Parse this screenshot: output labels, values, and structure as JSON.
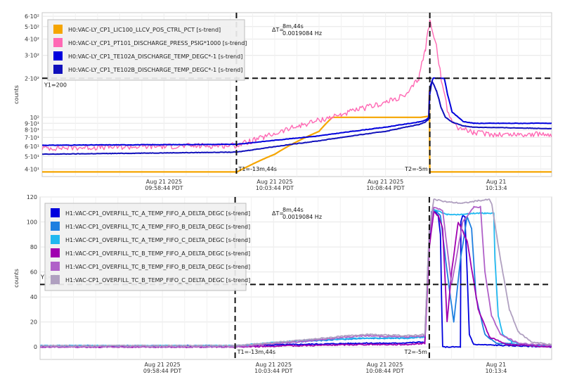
{
  "chart_data": [
    {
      "type": "line",
      "yscale": "log",
      "ylabel": "counts",
      "ylim": [
        35,
        640
      ],
      "yticks": [
        {
          "v": 40,
          "label": "4·10¹"
        },
        {
          "v": 50,
          "label": "5·10¹"
        },
        {
          "v": 60,
          "label": "6·10¹"
        },
        {
          "v": 70,
          "label": "7·10¹"
        },
        {
          "v": 80,
          "label": "8·10¹"
        },
        {
          "v": 90,
          "label": "9·10¹"
        },
        {
          "v": 100,
          "label": "10²"
        },
        {
          "v": 200,
          "label": "2·10²"
        },
        {
          "v": 300,
          "label": "3·10²"
        },
        {
          "v": 400,
          "label": "4·10²"
        },
        {
          "v": 500,
          "label": "5·10²"
        },
        {
          "v": 600,
          "label": "6·10²"
        }
      ],
      "xlim": [
        -22.5,
        0.5
      ],
      "xticks": [
        {
          "v": -17,
          "label1": "Aug 21 2025",
          "label2": "09:58:44 PDT"
        },
        {
          "v": -12,
          "label1": "Aug 21 2025",
          "label2": "10:03:44 PDT"
        },
        {
          "v": -7,
          "label1": "Aug 21 2025",
          "label2": "10:08:44 PDT"
        },
        {
          "v": -2,
          "label1": "Aug 21",
          "label2": "10:13:4"
        }
      ],
      "cursors": {
        "t1": -13.73,
        "t2": -5,
        "y1": 200,
        "t1_label": "T1=-13m,44s",
        "t2_label": "T2=-5m",
        "y1_label": "Y1=200"
      },
      "delta": {
        "label": "ΔT=",
        "value": "8m,44s",
        "freq": "0.0019084 Hz"
      },
      "legend": [
        {
          "label": "H0:VAC-LY_CP1_LIC100_LLCV_POS_CTRL_PCT [s-trend]",
          "color": "#f5a500"
        },
        {
          "label": "H0:VAC-LY_CP1_PT101_DISCHARGE_PRESS_PSIG*1000 [s-trend]",
          "color": "#ff69b4"
        },
        {
          "label": "H0:VAC-LY_CP1_TE102A_DISCHARGE_TEMP_DEGC*-1 [s-trend]",
          "color": "#0000dd"
        },
        {
          "label": "H0:VAC-LY_CP1_TE102B_DISCHARGE_TEMP_DEGC*-1 [s-trend]",
          "color": "#1010bb"
        }
      ],
      "series": [
        {
          "name": "H0:VAC-LY_CP1_LIC100_LLCV_POS_CTRL_PCT [s-trend]",
          "color": "#f5a500",
          "width": 2.2,
          "noise": 0,
          "x": [
            -22.5,
            -13.7,
            -13.2,
            -12.0,
            -10.0,
            -9.4,
            -5.4,
            -5.05,
            -5.02,
            -5.0,
            0.5
          ],
          "y": [
            38,
            38,
            42,
            52,
            78,
            100,
            100,
            102,
            160,
            38,
            38
          ]
        },
        {
          "name": "H0:VAC-LY_CP1_PT101_DISCHARGE_PRESS_PSIG*1000 [s-trend]",
          "color": "#ff69b4",
          "width": 1.4,
          "noise": 0.05,
          "x": [
            -22.5,
            -13.7,
            -12.5,
            -11.0,
            -9.0,
            -7.0,
            -6.0,
            -5.5,
            -5.2,
            -5.0,
            -4.8,
            -4.5,
            -4.2,
            -3.8,
            -3.0,
            -2.0,
            -1.0,
            0.5
          ],
          "y": [
            58,
            61,
            70,
            85,
            105,
            130,
            150,
            200,
            330,
            550,
            420,
            200,
            110,
            85,
            76,
            74,
            74,
            74
          ]
        },
        {
          "name": "H0:VAC-LY_CP1_TE102A_DISCHARGE_TEMP_DEGC*-1 [s-trend]",
          "color": "#0000dd",
          "width": 2.0,
          "noise": 0.004,
          "x": [
            -22.5,
            -13.7,
            -10.0,
            -7.0,
            -5.5,
            -5.2,
            -5.05,
            -5.0,
            -4.85,
            -4.5,
            -4.35,
            -4.2,
            -4.0,
            -3.5,
            -3.0,
            0.5
          ],
          "y": [
            61,
            62,
            72,
            84,
            92,
            95,
            100,
            170,
            200,
            200,
            200,
            150,
            110,
            93,
            90,
            90
          ]
        },
        {
          "name": "H0:VAC-LY_CP1_TE102B_DISCHARGE_TEMP_DEGC*-1 [s-trend]",
          "color": "#1010bb",
          "width": 2.0,
          "noise": 0.004,
          "x": [
            -22.5,
            -13.7,
            -10.0,
            -7.0,
            -5.5,
            -5.2,
            -5.05,
            -5.0,
            -4.9,
            -4.7,
            -4.5,
            -4.3,
            -4.0,
            -3.5,
            -3.0,
            0.5
          ],
          "y": [
            52,
            54,
            66,
            78,
            88,
            92,
            97,
            150,
            190,
            160,
            120,
            100,
            92,
            86,
            84,
            82
          ]
        }
      ]
    },
    {
      "type": "line",
      "yscale": "linear",
      "ylabel": "counts",
      "ylim": [
        -10,
        120
      ],
      "yticks": [
        {
          "v": 0,
          "label": "0"
        },
        {
          "v": 20,
          "label": "20"
        },
        {
          "v": 40,
          "label": "40"
        },
        {
          "v": 60,
          "label": "60"
        },
        {
          "v": 80,
          "label": "80"
        },
        {
          "v": 100,
          "label": "100"
        },
        {
          "v": 120,
          "label": "120"
        }
      ],
      "xlim": [
        -22.5,
        0.5
      ],
      "xticks": [
        {
          "v": -17,
          "label1": "Aug 21 2025",
          "label2": "09:58:44 PDT"
        },
        {
          "v": -12,
          "label1": "Aug 21 2025",
          "label2": "10:03:44 PDT"
        },
        {
          "v": -7,
          "label1": "Aug 21 2025",
          "label2": "10:08:44 PDT"
        },
        {
          "v": -2,
          "label1": "Aug 21",
          "label2": "10:13:4"
        }
      ],
      "cursors": {
        "t1": -13.73,
        "t2": -5,
        "y1": 50,
        "t1_label": "T1=-13m,44s",
        "t2_label": "T2=-5m",
        "y1_label": "Y1=50"
      },
      "delta": {
        "label": "ΔT=",
        "value": "8m,44s",
        "freq": "0.0019084 Hz"
      },
      "legend": [
        {
          "label": "H1:VAC-CP1_OVERFILL_TC_A_TEMP_FIFO_A_DELTA_DEGC [s-trend]",
          "color": "#0000dd"
        },
        {
          "label": "H1:VAC-CP1_OVERFILL_TC_A_TEMP_FIFO_B_DELTA_DEGC [s-trend]",
          "color": "#1e7fe0"
        },
        {
          "label": "H1:VAC-CP1_OVERFILL_TC_A_TEMP_FIFO_C_DELTA_DEGC [s-trend]",
          "color": "#20b8f0"
        },
        {
          "label": "H1:VAC-CP1_OVERFILL_TC_B_TEMP_FIFO_A_DELTA_DEGC [s-trend]",
          "color": "#a000b0"
        },
        {
          "label": "H1:VAC-CP1_OVERFILL_TC_B_TEMP_FIFO_B_DELTA_DEGC [s-trend]",
          "color": "#b060c8"
        },
        {
          "label": "H1:VAC-CP1_OVERFILL_TC_B_TEMP_FIFO_C_DELTA_DEGC [s-trend]",
          "color": "#b0a0c0"
        }
      ],
      "series": [
        {
          "name": "H1:VAC-CP1_OVERFILL_TC_A_TEMP_FIFO_A_DELTA_DEGC [s-trend]",
          "color": "#0000dd",
          "width": 1.8,
          "noise": 0.4,
          "x": [
            -22.5,
            -13.7,
            -11.0,
            -8.0,
            -6.5,
            -5.2,
            -5.0,
            -4.9,
            -4.8,
            -4.6,
            -4.5,
            -4.45,
            -4.4,
            -3.6,
            -3.58,
            -3.5,
            -3.4,
            -3.3,
            -3.2,
            -3.0,
            0.5
          ],
          "y": [
            1,
            1,
            2,
            3,
            3,
            4,
            85,
            108,
            110,
            105,
            90,
            40,
            0,
            0,
            100,
            105,
            104,
            60,
            10,
            2,
            0
          ]
        },
        {
          "name": "H1:VAC-CP1_OVERFILL_TC_A_TEMP_FIFO_B_DELTA_DEGC [s-trend]",
          "color": "#1e7fe0",
          "width": 1.8,
          "noise": 0.4,
          "x": [
            -22.5,
            -13.7,
            -11.0,
            -8.0,
            -6.0,
            -5.2,
            -5.0,
            -4.8,
            -4.5,
            -4.2,
            -3.9,
            -3.6,
            -3.3,
            -3.1,
            -2.9,
            -2.5,
            -2.0,
            0.5
          ],
          "y": [
            1,
            1,
            4,
            7,
            7,
            8,
            90,
            110,
            105,
            60,
            20,
            70,
            104,
            95,
            40,
            10,
            3,
            1
          ]
        },
        {
          "name": "H1:VAC-CP1_OVERFILL_TC_A_TEMP_FIFO_C_DELTA_DEGC [s-trend]",
          "color": "#20b8f0",
          "width": 1.8,
          "noise": 0.4,
          "x": [
            -22.5,
            -13.7,
            -11.0,
            -8.0,
            -6.0,
            -5.2,
            -5.0,
            -4.8,
            -4.5,
            -4.2,
            -3.5,
            -3.0,
            -2.5,
            -2.1,
            -2.05,
            -1.9,
            -1.7,
            -1.3,
            -0.5,
            0.5
          ],
          "y": [
            1,
            1,
            5,
            7,
            7,
            8,
            92,
            110,
            108,
            106,
            106,
            107,
            107,
            107,
            70,
            25,
            10,
            4,
            1,
            0
          ]
        },
        {
          "name": "H1:VAC-CP1_OVERFILL_TC_B_TEMP_FIFO_A_DELTA_DEGC [s-trend]",
          "color": "#a000b0",
          "width": 1.8,
          "noise": 0.5,
          "x": [
            -22.5,
            -13.7,
            -11.0,
            -8.0,
            -6.0,
            -5.2,
            -5.0,
            -4.8,
            -4.6,
            -4.4,
            -4.2,
            -4.0,
            -3.7,
            -3.3,
            -2.8,
            -2.3,
            -1.5,
            0.5
          ],
          "y": [
            0,
            0,
            1,
            2,
            2,
            3,
            80,
            108,
            105,
            95,
            20,
            60,
            100,
            85,
            30,
            8,
            2,
            0
          ]
        },
        {
          "name": "H1:VAC-CP1_OVERFILL_TC_B_TEMP_FIFO_B_DELTA_DEGC [s-trend]",
          "color": "#b060c8",
          "width": 1.8,
          "noise": 0.5,
          "x": [
            -22.5,
            -13.7,
            -11.0,
            -8.0,
            -6.0,
            -5.2,
            -5.0,
            -4.8,
            -4.4,
            -4.0,
            -3.5,
            -3.0,
            -2.7,
            -2.5,
            -2.2,
            -1.8,
            -1.0,
            0.5
          ],
          "y": [
            0,
            0,
            4,
            9,
            8,
            9,
            90,
            112,
            109,
            50,
            100,
            112,
            112,
            60,
            25,
            10,
            3,
            1
          ]
        },
        {
          "name": "H1:VAC-CP1_OVERFILL_TC_B_TEMP_FIFO_C_DELTA_DEGC [s-trend]",
          "color": "#b0a0c0",
          "width": 1.8,
          "noise": 0.5,
          "x": [
            -22.5,
            -13.7,
            -11.0,
            -8.0,
            -6.0,
            -5.2,
            -5.0,
            -4.8,
            -4.2,
            -3.5,
            -2.8,
            -2.3,
            -2.2,
            -1.8,
            -1.4,
            -1.0,
            -0.4,
            0.5
          ],
          "y": [
            1,
            1,
            5,
            10,
            9,
            10,
            95,
            118,
            116,
            115,
            117,
            118,
            115,
            70,
            30,
            12,
            4,
            2
          ]
        }
      ]
    }
  ]
}
